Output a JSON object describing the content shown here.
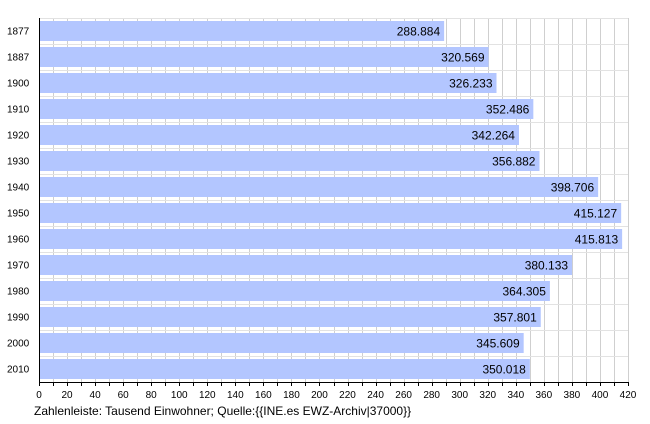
{
  "chart_data": {
    "type": "bar",
    "orientation": "horizontal",
    "categories": [
      "1877",
      "1887",
      "1900",
      "1910",
      "1920",
      "1930",
      "1940",
      "1950",
      "1960",
      "1970",
      "1980",
      "1990",
      "2000",
      "2010"
    ],
    "values": [
      288.884,
      320.569,
      326.233,
      352.486,
      342.264,
      356.882,
      398.706,
      415.127,
      415.813,
      380.133,
      364.305,
      357.801,
      345.609,
      350.018
    ],
    "value_labels": [
      "288.884",
      "320.569",
      "326.233",
      "352.486",
      "342.264",
      "356.882",
      "398.706",
      "415.127",
      "415.813",
      "380.133",
      "364.305",
      "357.801",
      "345.609",
      "350.018"
    ],
    "xlim": [
      0,
      420
    ],
    "x_ticks": [
      0,
      10,
      20,
      30,
      40,
      50,
      60,
      70,
      80,
      90,
      100,
      110,
      120,
      130,
      140,
      150,
      160,
      170,
      180,
      190,
      200,
      210,
      220,
      230,
      240,
      250,
      260,
      270,
      280,
      290,
      300,
      310,
      320,
      330,
      340,
      350,
      360,
      370,
      380,
      390,
      400,
      410,
      420
    ],
    "x_tick_labels": [
      "0",
      "20",
      "40",
      "60",
      "80",
      "100",
      "120",
      "140",
      "160",
      "180",
      "200",
      "220",
      "240",
      "260",
      "280",
      "300",
      "320",
      "340",
      "360",
      "380",
      "400",
      "420"
    ],
    "grid": "vertical",
    "bar_color": "#b3c6ff",
    "caption": "Zahlenleiste: Tausend Einwohner; Quelle:{{INE.es EWZ-Archiv|37000}}"
  }
}
